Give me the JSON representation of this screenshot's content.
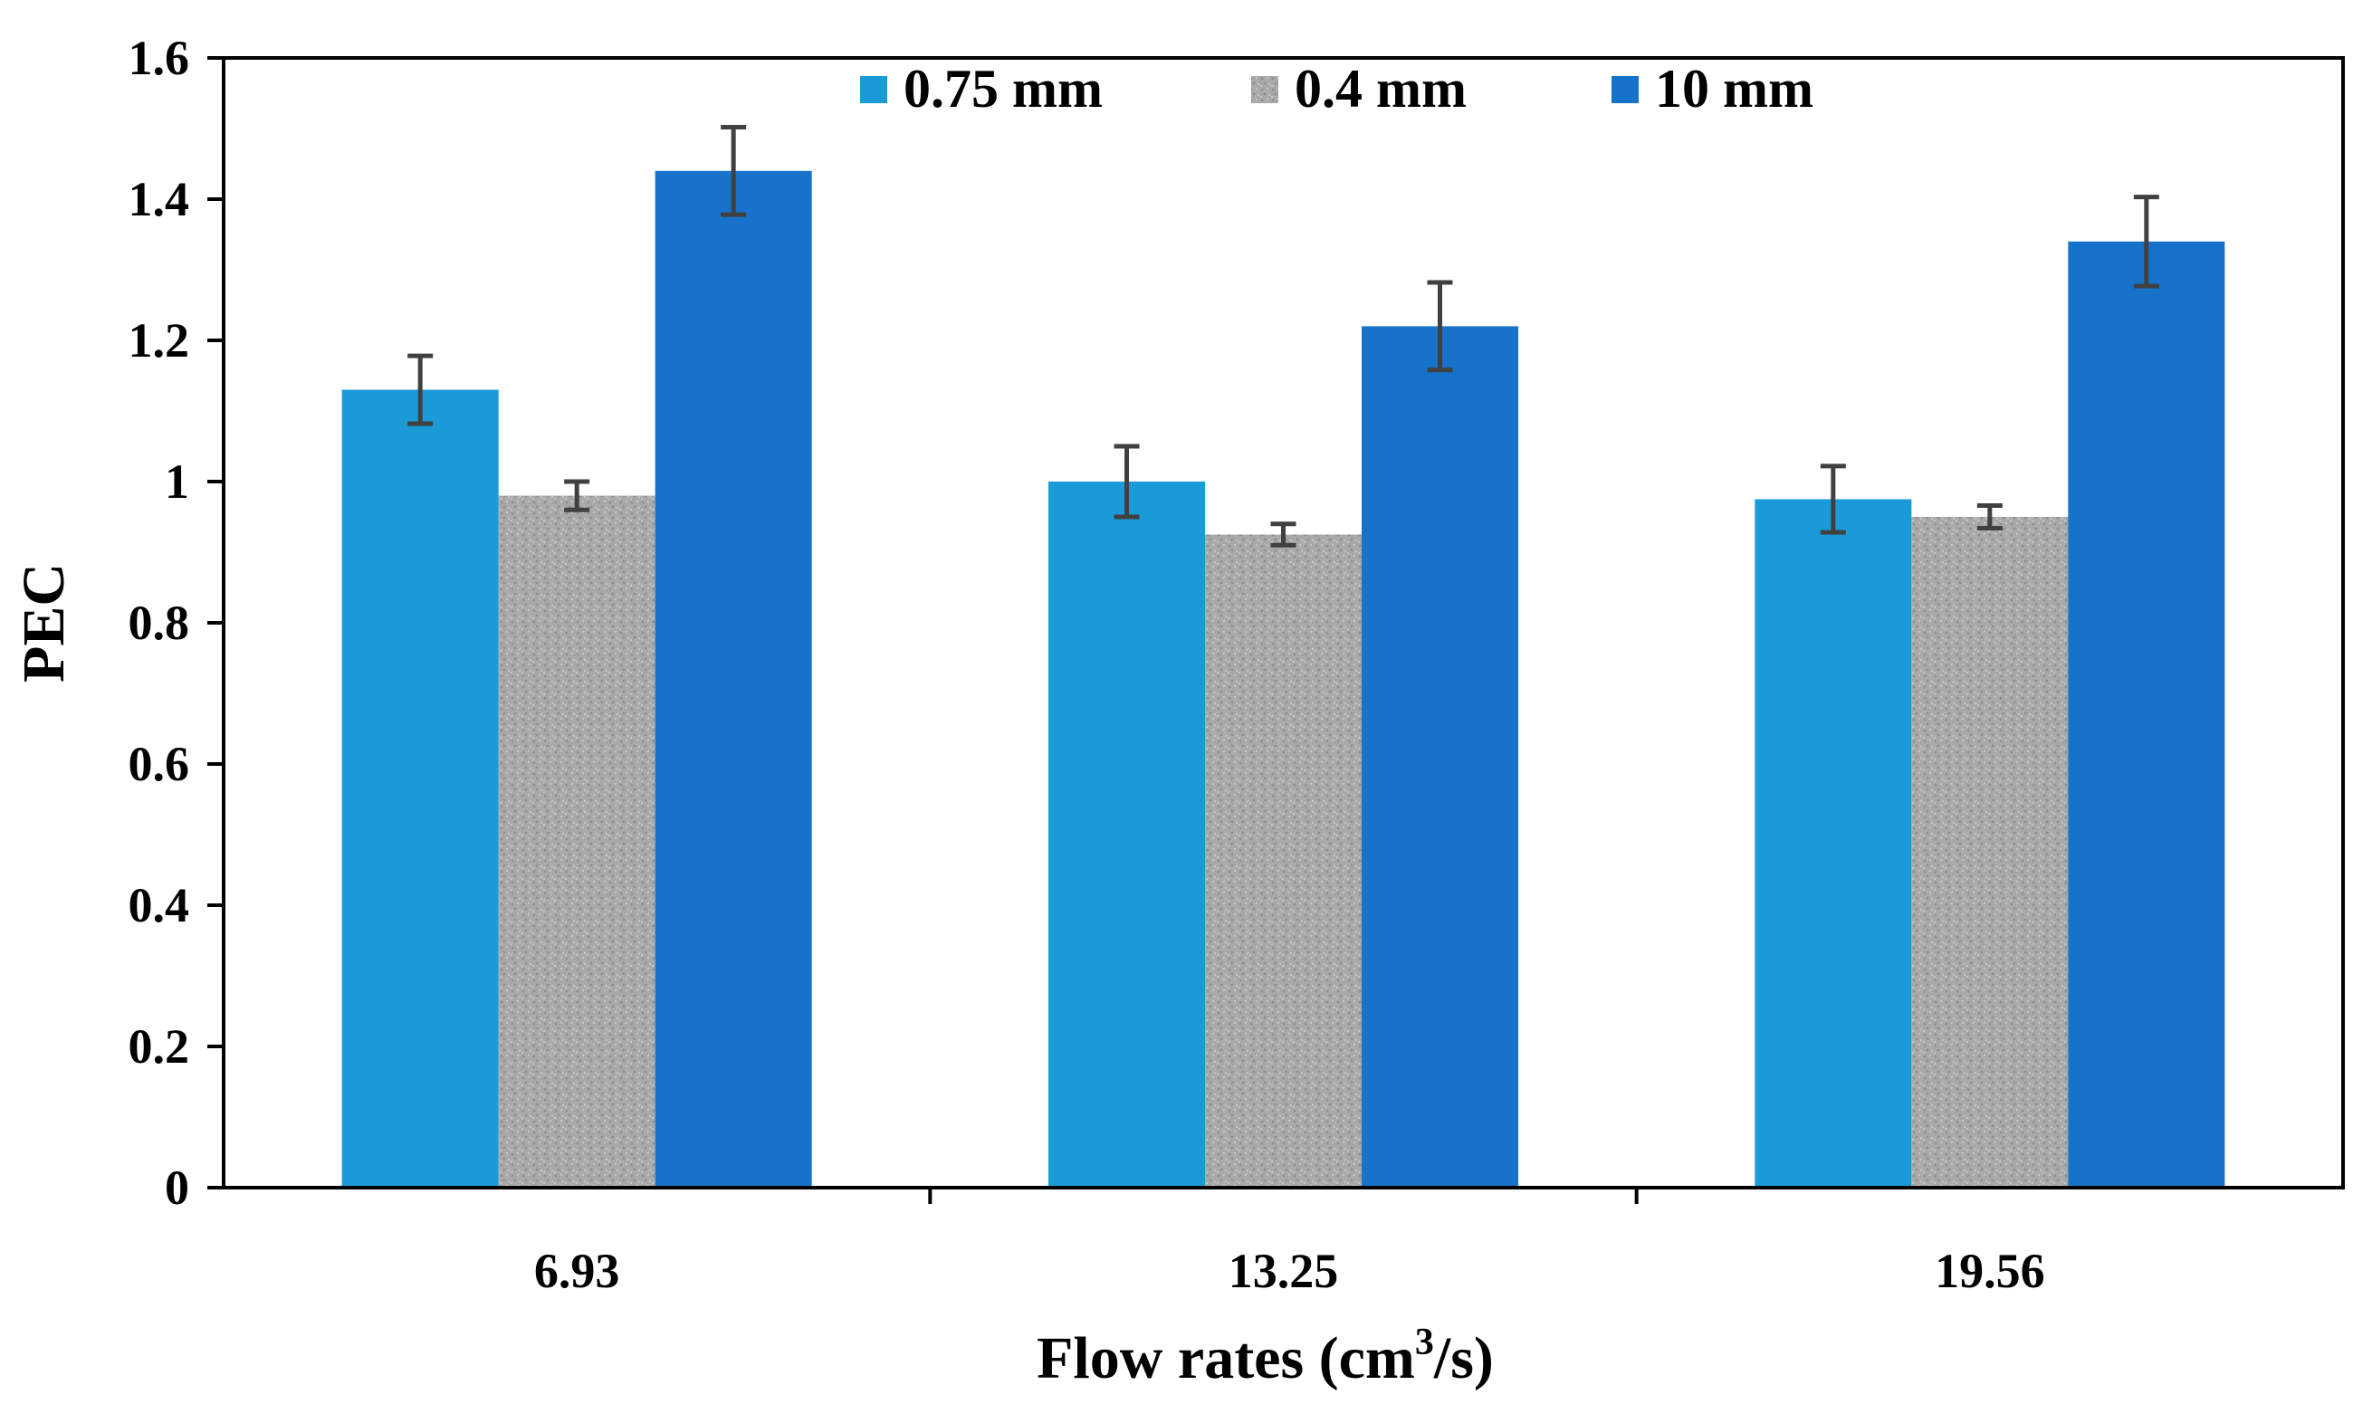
{
  "chart_data": {
    "type": "bar",
    "title": "",
    "xlabel": "Flow rates (cm³/s)",
    "xlabel_parts": {
      "main": "Flow rates (cm",
      "sup": "3",
      "tail": "/s)"
    },
    "ylabel": "PEC",
    "ylim": [
      0,
      1.6
    ],
    "yticks": [
      0,
      0.2,
      0.4,
      0.6,
      0.8,
      1,
      1.2,
      1.4,
      1.6
    ],
    "ytick_labels": [
      "0",
      "0.2",
      "0.4",
      "0.6",
      "0.8",
      "1",
      "1.2",
      "1.4",
      "1.6"
    ],
    "categories": [
      "6.93",
      "13.25",
      "19.56"
    ],
    "legend_position": "top-center",
    "grid": false,
    "series": [
      {
        "name": "0.75 mm",
        "color": "#1a9ad6",
        "pattern": "solid",
        "values": [
          1.13,
          1.0,
          0.975
        ],
        "errors": [
          0.048,
          0.05,
          0.047
        ]
      },
      {
        "name": "0.4 mm",
        "color": "#a6a6a6",
        "pattern": "speckle",
        "values": [
          0.98,
          0.925,
          0.95
        ],
        "errors": [
          0.02,
          0.015,
          0.016
        ]
      },
      {
        "name": "10 mm",
        "color": "#1773c9",
        "pattern": "solid",
        "values": [
          1.44,
          1.22,
          1.34
        ],
        "errors": [
          0.062,
          0.062,
          0.063
        ]
      }
    ],
    "error_bar_color": "#404040"
  }
}
